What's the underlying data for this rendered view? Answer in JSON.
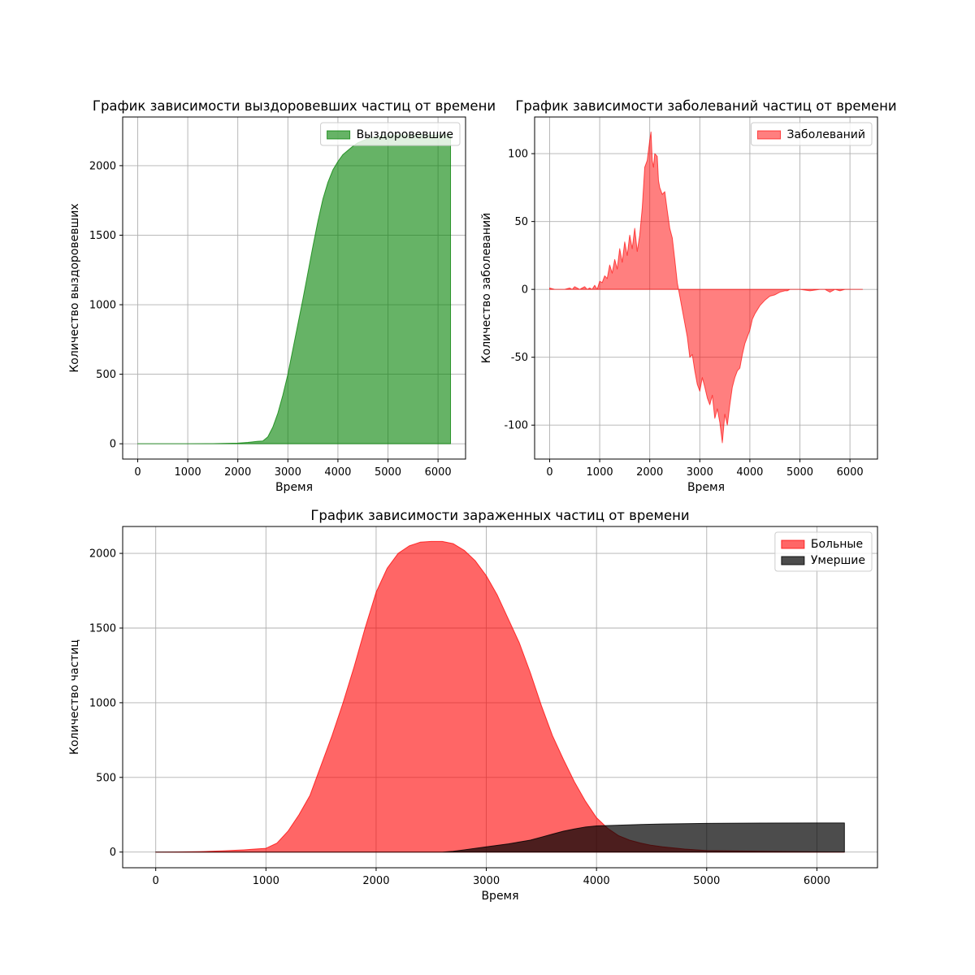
{
  "chart_data": [
    {
      "type": "area",
      "title": "График зависимости выздоровевших частиц от времени",
      "xlabel": "Время",
      "ylabel": "Количество выздоровевших",
      "xlim": [
        -300,
        6550
      ],
      "ylim": [
        -110,
        2350
      ],
      "xticks": [
        0,
        1000,
        2000,
        3000,
        4000,
        5000,
        6000
      ],
      "yticks": [
        0,
        500,
        1000,
        1500,
        2000
      ],
      "grid": true,
      "legend_position": "upper right",
      "series": [
        {
          "name": "Выздоровевшие",
          "color": "#008000",
          "alpha": 0.6,
          "x": [
            0,
            1000,
            1500,
            2000,
            2200,
            2400,
            2500,
            2600,
            2700,
            2800,
            2900,
            3000,
            3100,
            3200,
            3300,
            3400,
            3500,
            3600,
            3700,
            3800,
            3900,
            4000,
            4100,
            4200,
            4300,
            4400,
            4500,
            4600,
            4700,
            4800,
            5000,
            5200,
            5500,
            6000,
            6250
          ],
          "y": [
            0,
            0,
            1,
            5,
            10,
            18,
            20,
            50,
            120,
            220,
            350,
            500,
            680,
            860,
            1040,
            1230,
            1420,
            1600,
            1760,
            1880,
            1970,
            2030,
            2080,
            2110,
            2140,
            2165,
            2180,
            2195,
            2205,
            2210,
            2215,
            2220,
            2220,
            2220,
            2220
          ]
        }
      ]
    },
    {
      "type": "area",
      "title": "График зависимости заболеваний частиц от времени",
      "xlabel": "Время",
      "ylabel": "Количество заболеваний",
      "xlim": [
        -300,
        6550
      ],
      "ylim": [
        -125,
        127
      ],
      "xticks": [
        0,
        1000,
        2000,
        3000,
        4000,
        5000,
        6000
      ],
      "yticks": [
        -100,
        -50,
        0,
        50,
        100
      ],
      "grid": true,
      "legend_position": "upper right",
      "series": [
        {
          "name": "Заболеваний",
          "color": "#ff0000",
          "alpha": 0.5,
          "x": [
            0,
            100,
            300,
            400,
            450,
            500,
            600,
            650,
            700,
            750,
            800,
            850,
            900,
            950,
            1000,
            1050,
            1100,
            1150,
            1200,
            1250,
            1300,
            1350,
            1400,
            1450,
            1500,
            1550,
            1600,
            1650,
            1700,
            1750,
            1800,
            1850,
            1900,
            1950,
            2000,
            2025,
            2050,
            2075,
            2100,
            2150,
            2175,
            2200,
            2250,
            2300,
            2350,
            2400,
            2450,
            2500,
            2550,
            2600,
            2650,
            2700,
            2750,
            2800,
            2850,
            2900,
            2950,
            3000,
            3050,
            3100,
            3150,
            3200,
            3250,
            3300,
            3350,
            3400,
            3450,
            3500,
            3550,
            3600,
            3650,
            3700,
            3750,
            3800,
            3850,
            3900,
            3950,
            4000,
            4050,
            4100,
            4150,
            4200,
            4300,
            4400,
            4500,
            4550,
            4600,
            4700,
            4750,
            4800,
            5000,
            5200,
            5400,
            5500,
            5600,
            5700,
            5800,
            5900,
            6000,
            6100,
            6250
          ],
          "y": [
            1,
            0,
            0,
            1,
            0,
            2,
            0,
            1,
            2,
            0,
            1,
            0,
            3,
            0,
            6,
            5,
            10,
            8,
            18,
            12,
            22,
            15,
            30,
            20,
            35,
            25,
            40,
            30,
            45,
            28,
            40,
            60,
            90,
            95,
            110,
            116,
            95,
            90,
            100,
            98,
            80,
            75,
            70,
            72,
            58,
            45,
            38,
            22,
            5,
            -5,
            -15,
            -25,
            -35,
            -50,
            -48,
            -60,
            -70,
            -75,
            -65,
            -72,
            -80,
            -85,
            -78,
            -95,
            -88,
            -98,
            -113,
            -92,
            -100,
            -85,
            -72,
            -65,
            -60,
            -58,
            -48,
            -40,
            -35,
            -30,
            -22,
            -18,
            -15,
            -12,
            -8,
            -5,
            -4,
            -3,
            -2,
            -1,
            -1,
            0,
            0,
            -1,
            0,
            0,
            -2,
            0,
            -1,
            0,
            0,
            0,
            0
          ]
        }
      ]
    },
    {
      "type": "area",
      "title": "График зависимости зараженных частиц от времени",
      "xlabel": "Время",
      "ylabel": "Количество частиц",
      "xlim": [
        -300,
        6550
      ],
      "ylim": [
        -105,
        2180
      ],
      "xticks": [
        0,
        1000,
        2000,
        3000,
        4000,
        5000,
        6000
      ],
      "yticks": [
        0,
        500,
        1000,
        1500,
        2000
      ],
      "grid": true,
      "legend_position": "upper right",
      "series": [
        {
          "name": "Больные",
          "color": "#ff0000",
          "alpha": 0.6,
          "x": [
            0,
            200,
            400,
            600,
            800,
            900,
            1000,
            1100,
            1200,
            1300,
            1400,
            1500,
            1600,
            1700,
            1800,
            1900,
            2000,
            2100,
            2200,
            2300,
            2400,
            2500,
            2600,
            2700,
            2800,
            2900,
            3000,
            3100,
            3200,
            3300,
            3400,
            3500,
            3600,
            3700,
            3800,
            3900,
            4000,
            4100,
            4200,
            4300,
            4400,
            4500,
            4600,
            4800,
            5000,
            5500,
            6000,
            6250
          ],
          "y": [
            0,
            1,
            3,
            8,
            15,
            20,
            25,
            60,
            140,
            250,
            380,
            580,
            780,
            1000,
            1240,
            1500,
            1740,
            1900,
            2000,
            2050,
            2075,
            2080,
            2080,
            2065,
            2020,
            1950,
            1850,
            1720,
            1560,
            1400,
            1200,
            980,
            780,
            620,
            470,
            340,
            230,
            160,
            110,
            80,
            60,
            45,
            35,
            20,
            10,
            5,
            2,
            0
          ]
        },
        {
          "name": "Умершие",
          "color": "#000000",
          "alpha": 0.7,
          "x": [
            0,
            1000,
            2000,
            2600,
            2700,
            2800,
            3000,
            3200,
            3400,
            3500,
            3600,
            3700,
            3800,
            3900,
            4000,
            4200,
            4400,
            4600,
            4800,
            5000,
            5500,
            6000,
            6250
          ],
          "y": [
            0,
            0,
            0,
            0,
            5,
            15,
            35,
            55,
            80,
            100,
            120,
            140,
            155,
            168,
            175,
            180,
            185,
            188,
            190,
            192,
            194,
            195,
            195
          ]
        }
      ]
    }
  ]
}
